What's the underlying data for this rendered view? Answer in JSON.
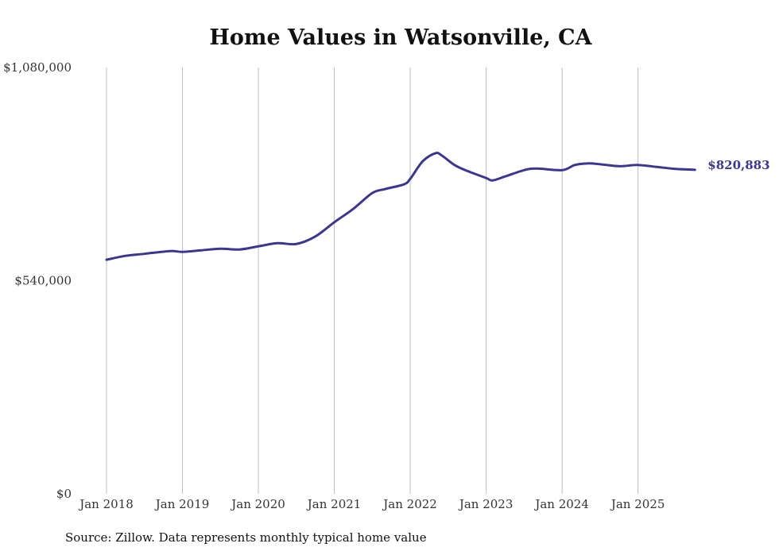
{
  "chart_data": {
    "type": "line",
    "title": "Home Values in Watsonville, CA",
    "source": "Source: Zillow. Data represents monthly typical home value",
    "xlabel": "",
    "ylabel": "",
    "ylim": [
      0,
      1080000
    ],
    "y_ticks": [
      0,
      540000,
      1080000
    ],
    "y_tick_labels": [
      "$0",
      "$540,000",
      "$1,080,000"
    ],
    "x_tick_labels": [
      "Jan 2018",
      "Jan 2019",
      "Jan 2020",
      "Jan 2021",
      "Jan 2022",
      "Jan 2023",
      "Jan 2024",
      "Jan 2025"
    ],
    "grid": "vertical",
    "line_color": "#3b3593",
    "end_label": "$820,883",
    "series": [
      {
        "name": "Typical home value",
        "x": [
          "2018-01",
          "2018-04",
          "2018-07",
          "2018-11",
          "2019-01",
          "2019-04",
          "2019-07",
          "2019-10",
          "2020-01",
          "2020-04",
          "2020-07",
          "2020-10",
          "2021-01",
          "2021-04",
          "2021-07",
          "2021-09",
          "2021-12",
          "2022-01",
          "2022-03",
          "2022-05",
          "2022-06",
          "2022-08",
          "2022-10",
          "2023-01",
          "2023-02",
          "2023-04",
          "2023-07",
          "2023-09",
          "2024-01",
          "2024-03",
          "2024-05",
          "2024-07",
          "2024-10",
          "2025-01",
          "2025-04",
          "2025-07",
          "2025-10"
        ],
        "values": [
          593000,
          603000,
          608000,
          615000,
          613000,
          617000,
          621000,
          619000,
          627000,
          635000,
          633000,
          652000,
          688000,
          722000,
          762000,
          772000,
          784000,
          798000,
          843000,
          863000,
          857000,
          833000,
          818000,
          800000,
          794000,
          804000,
          820000,
          824000,
          820000,
          833000,
          837000,
          835000,
          830000,
          833000,
          828000,
          823000,
          820883
        ]
      }
    ]
  }
}
